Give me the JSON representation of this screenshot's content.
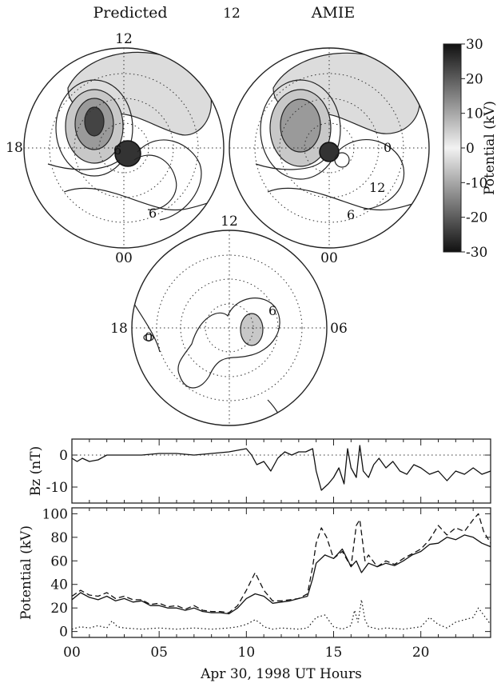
{
  "chart_data": [
    {
      "type": "polar-contour",
      "title": "Predicted",
      "clock_labels": [
        "12",
        "18",
        "00"
      ],
      "contour_labels": [
        "6",
        "6"
      ]
    },
    {
      "type": "polar-contour",
      "title": "AMIE",
      "clock_labels": [
        "12",
        "00"
      ],
      "contour_labels": [
        "0",
        "12",
        "6"
      ]
    },
    {
      "type": "polar-contour",
      "title": "",
      "clock_labels": [
        "12",
        "18",
        "06"
      ],
      "contour_labels": [
        "0",
        "6"
      ]
    },
    {
      "type": "colorbar",
      "label": "Potential (kV)",
      "range": [
        -30,
        30
      ],
      "ticks": [
        "30",
        "20",
        "10",
        "0",
        "-10",
        "-20",
        "-30"
      ],
      "colors": {
        "high": "#111111",
        "zero": "#f2f2f2",
        "low": "#111111"
      }
    },
    {
      "type": "line",
      "ylabel": "Bz (nT)",
      "xlim": [
        0,
        24
      ],
      "ylim": [
        -15,
        5
      ],
      "yticks": [
        "0",
        "-10"
      ],
      "zero_line": "dotted",
      "series": [
        {
          "style": "solid",
          "x": [
            0,
            0.3,
            0.6,
            1,
            1.5,
            2,
            3,
            4,
            5,
            6,
            7,
            8,
            9,
            10,
            10.3,
            10.6,
            11,
            11.4,
            11.8,
            12.2,
            12.6,
            13,
            13.4,
            13.8,
            14,
            14.3,
            14.7,
            15,
            15.3,
            15.6,
            15.8,
            16,
            16.3,
            16.5,
            16.7,
            17,
            17.3,
            17.6,
            18,
            18.4,
            18.8,
            19.2,
            19.6,
            20,
            20.5,
            21,
            21.5,
            22,
            22.5,
            23,
            23.5,
            24
          ],
          "y": [
            -1,
            -2,
            -1,
            -2,
            -1.5,
            0,
            0,
            0,
            0.5,
            0.5,
            0,
            0.5,
            1,
            2,
            0,
            -3,
            -2,
            -5,
            -1,
            1,
            0,
            1,
            1,
            2,
            -5,
            -11,
            -9,
            -7,
            -4,
            -9,
            2,
            -4,
            -7,
            3,
            -5,
            -7,
            -3,
            -1,
            -4,
            -2,
            -5,
            -6,
            -3,
            -4,
            -6,
            -5,
            -8,
            -5,
            -6,
            -4,
            -6,
            -5
          ]
        }
      ]
    },
    {
      "type": "line",
      "ylabel": "Potential (kV)",
      "xlabel": "Apr 30, 1998 UT Hours",
      "xlim": [
        0,
        24
      ],
      "ylim": [
        -5,
        105
      ],
      "xticks": [
        "00",
        "05",
        "10",
        "15",
        "20"
      ],
      "yticks": [
        "0",
        "20",
        "40",
        "60",
        "80",
        "100"
      ],
      "series": [
        {
          "style": "solid",
          "x": [
            0,
            0.5,
            1,
            1.5,
            2,
            2.5,
            3,
            3.5,
            4,
            4.5,
            5,
            5.5,
            6,
            6.5,
            7,
            7.5,
            8,
            8.5,
            9,
            9.5,
            10,
            10.5,
            11,
            11.5,
            12,
            12.5,
            13,
            13.5,
            13.8,
            14,
            14.5,
            15,
            15.5,
            16,
            16.3,
            16.6,
            17,
            17.5,
            18,
            18.5,
            19,
            19.5,
            20,
            20.5,
            21,
            21.5,
            22,
            22.5,
            23,
            23.5,
            24
          ],
          "y": [
            27,
            33,
            29,
            27,
            30,
            26,
            28,
            25,
            26,
            22,
            22,
            20,
            20,
            18,
            20,
            17,
            16,
            16,
            15,
            20,
            28,
            32,
            30,
            24,
            25,
            26,
            28,
            30,
            45,
            58,
            65,
            62,
            70,
            55,
            60,
            50,
            58,
            55,
            58,
            56,
            60,
            65,
            68,
            74,
            75,
            80,
            78,
            82,
            80,
            75,
            72
          ]
        },
        {
          "style": "dashed",
          "x": [
            0,
            0.5,
            1,
            1.5,
            2,
            2.5,
            3,
            3.5,
            4,
            4.5,
            5,
            5.5,
            6,
            6.5,
            7,
            7.5,
            8,
            8.5,
            9,
            9.5,
            10,
            10.5,
            11,
            11.5,
            12,
            12.5,
            13,
            13.5,
            13.8,
            14,
            14.3,
            14.6,
            15,
            15.5,
            16,
            16.3,
            16.5,
            16.8,
            17,
            17.5,
            18,
            18.5,
            19,
            19.5,
            20,
            20.5,
            21,
            21.5,
            22,
            22.5,
            23,
            23.3,
            23.6,
            24
          ],
          "y": [
            30,
            35,
            31,
            30,
            33,
            28,
            30,
            27,
            27,
            23,
            24,
            21,
            22,
            19,
            22,
            18,
            17,
            17,
            16,
            22,
            35,
            50,
            35,
            26,
            26,
            27,
            28,
            32,
            55,
            75,
            88,
            80,
            62,
            68,
            55,
            90,
            95,
            60,
            65,
            55,
            60,
            57,
            62,
            66,
            70,
            78,
            90,
            82,
            88,
            85,
            95,
            100,
            85,
            75
          ]
        },
        {
          "style": "dotted",
          "x": [
            0,
            0.5,
            1,
            1.5,
            2,
            2.3,
            2.6,
            3,
            4,
            5,
            6,
            7,
            8,
            9,
            9.5,
            10,
            10.5,
            10.8,
            11,
            11.5,
            12,
            13,
            13.5,
            14,
            14.5,
            15,
            15.5,
            16,
            16.2,
            16.4,
            16.6,
            16.8,
            17,
            17.3,
            17.6,
            18,
            19,
            20,
            20.5,
            21,
            21.5,
            22,
            22.5,
            23,
            23.3,
            23.6,
            24
          ],
          "y": [
            2,
            4,
            3,
            5,
            3,
            9,
            4,
            3,
            2,
            3,
            2,
            3,
            2,
            3,
            4,
            6,
            10,
            7,
            4,
            2,
            3,
            2,
            3,
            12,
            14,
            4,
            2,
            5,
            18,
            8,
            27,
            10,
            4,
            3,
            2,
            3,
            2,
            4,
            12,
            6,
            3,
            8,
            10,
            12,
            20,
            14,
            6
          ]
        }
      ]
    }
  ]
}
